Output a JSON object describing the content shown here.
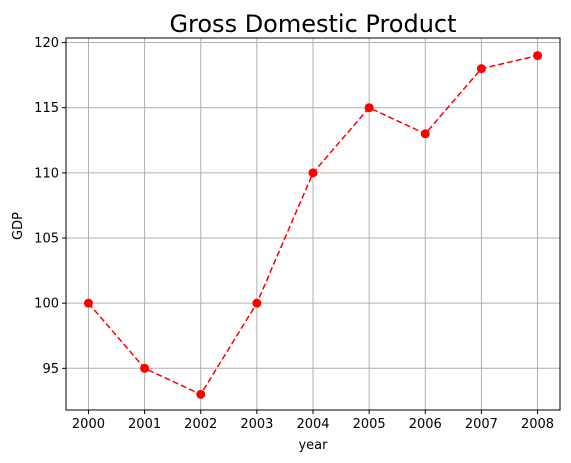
{
  "chart_data": {
    "type": "line",
    "title": "Gross Domestic Product",
    "xlabel": "year",
    "ylabel": "GDP",
    "x": [
      2000,
      2001,
      2002,
      2003,
      2004,
      2005,
      2006,
      2007,
      2008
    ],
    "x_tick_labels": [
      "2000",
      "2001",
      "2002",
      "2003",
      "2004",
      "2005",
      "2006",
      "2007",
      "2008"
    ],
    "series": [
      {
        "values": [
          100,
          95,
          93,
          100,
          110,
          115,
          113,
          118,
          119
        ],
        "color": "#ff0000",
        "line_style": "dashed",
        "marker": "circle"
      }
    ],
    "y_ticks": [
      95,
      100,
      105,
      110,
      115,
      120
    ],
    "y_tick_labels": [
      "95",
      "100",
      "105",
      "110",
      "115",
      "120"
    ],
    "xlim": [
      1999.6,
      2008.4
    ],
    "ylim": [
      91.8,
      120.35
    ],
    "grid": true,
    "grid_color": "#b0b0b0"
  }
}
